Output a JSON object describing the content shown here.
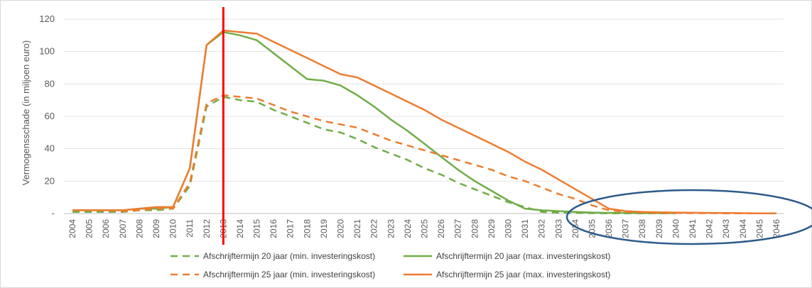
{
  "chart_data": {
    "type": "line",
    "title": "",
    "ylabel": "Vermogensschade (in miljoen euro)",
    "xlabel": "",
    "ylim": [
      0,
      120
    ],
    "yticks": [
      0,
      20,
      40,
      60,
      80,
      100,
      120
    ],
    "ytick_labels": [
      "-",
      "20",
      "40",
      "60",
      "80",
      "100",
      "120"
    ],
    "categories": [
      "2004",
      "2005",
      "2006",
      "2007",
      "2008",
      "2009",
      "2010",
      "2011",
      "2012",
      "2013",
      "2014",
      "2015",
      "2016",
      "2017",
      "2018",
      "2019",
      "2020",
      "2021",
      "2022",
      "2023",
      "2024",
      "2025",
      "2026",
      "2027",
      "2028",
      "2029",
      "2030",
      "2031",
      "2032",
      "2033",
      "2034",
      "2035",
      "2036",
      "2037",
      "2038",
      "2039",
      "2040",
      "2041",
      "2042",
      "2043",
      "2044",
      "2045",
      "2046"
    ],
    "grid": "horizontal",
    "legend_position": "bottom",
    "series": [
      {
        "name": "Afschrijftermijn 20 jaar (min. investeringskost)",
        "color": "#70AD47",
        "style": "dashed",
        "values": [
          1,
          1,
          1,
          1,
          2,
          2,
          3,
          17,
          66,
          72,
          70,
          69,
          64,
          60,
          56,
          52,
          50,
          46,
          41,
          37,
          33,
          28,
          24,
          19,
          15,
          11,
          7,
          4,
          1,
          0.5,
          0.3,
          0.2,
          0.1,
          0.1,
          0.1,
          0.1,
          0.1,
          null,
          null,
          null,
          null,
          null,
          null
        ]
      },
      {
        "name": "Afschrijftermijn 20 jaar (max. investeringskost)",
        "color": "#70AD47",
        "style": "solid",
        "values": [
          2,
          2,
          2,
          2,
          3,
          3,
          4,
          28,
          104,
          112,
          110,
          107,
          99,
          91,
          83,
          82,
          79,
          73,
          66,
          58,
          51,
          43,
          35,
          27,
          20,
          14,
          8,
          3,
          2,
          1.5,
          1,
          0.6,
          0.4,
          0.3,
          0.2,
          0.2,
          0.2,
          null,
          null,
          null,
          null,
          null,
          null
        ]
      },
      {
        "name": "Afschrijftermijn 25 jaar (min. investeringskost)",
        "color": "#ED7D31",
        "style": "dashed",
        "values": [
          2,
          2,
          2,
          1.5,
          2,
          3,
          3,
          19,
          68,
          73,
          72,
          71,
          67,
          63,
          60,
          57,
          55,
          53,
          49,
          45,
          42,
          39,
          36,
          33,
          30,
          27,
          23,
          20,
          16,
          12,
          9,
          5,
          2,
          1,
          0.6,
          0.4,
          0.3,
          0.2,
          0.2,
          0.1,
          0.1,
          0.1,
          0.1
        ]
      },
      {
        "name": "Afschrijftermijn 25 jaar (max. investeringskost)",
        "color": "#ED7D31",
        "style": "solid",
        "values": [
          2,
          2,
          2,
          2,
          3,
          4,
          4,
          28,
          104,
          113,
          112,
          111,
          106,
          101,
          96,
          91,
          86,
          84,
          79,
          74,
          69,
          64,
          58,
          53,
          48,
          43,
          38,
          32,
          27,
          21,
          15,
          9,
          3,
          1.5,
          1,
          0.8,
          0.6,
          0.5,
          0.4,
          0.3,
          0.2,
          0.1,
          0.1
        ]
      }
    ],
    "annotations": [
      {
        "type": "vertical-line",
        "x": "2013",
        "color": "#FF0000"
      },
      {
        "type": "ellipse",
        "x_from": "2036",
        "x_to": "2046",
        "color": "#2E5B8A"
      }
    ]
  }
}
